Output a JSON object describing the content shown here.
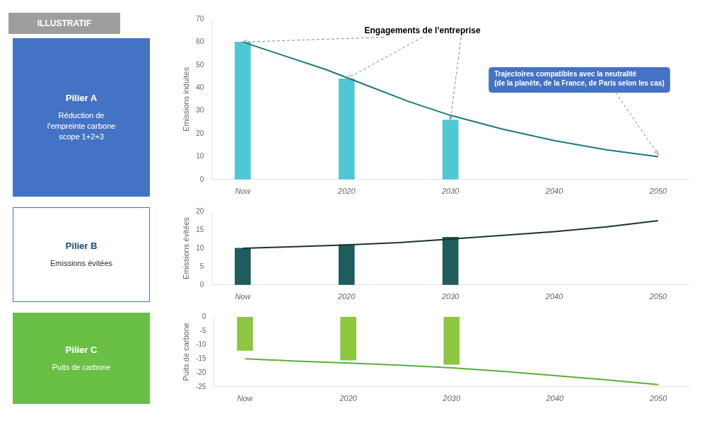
{
  "chart_data": [
    {
      "type": "bar",
      "ylabel": "Emissions induites",
      "xlim": [
        2007,
        2053
      ],
      "xticks": [
        {
          "value": 2010,
          "label": "Now"
        },
        2020,
        2030,
        2040,
        2050
      ],
      "ylim": [
        0,
        70
      ],
      "yticks": [
        0,
        10,
        20,
        30,
        40,
        50,
        60,
        70
      ],
      "grid": false,
      "series": [
        {
          "type": "bar",
          "color": "#4ec9d4",
          "x": [
            2010,
            2020,
            2030
          ],
          "values": [
            60,
            44,
            26
          ]
        },
        {
          "type": "line",
          "color": "#1a7a7a",
          "x": [
            2010,
            2014,
            2018,
            2022,
            2026,
            2030,
            2035,
            2040,
            2045,
            2050
          ],
          "values": [
            60,
            54,
            48,
            41,
            34,
            28,
            22,
            17,
            13,
            10
          ]
        }
      ],
      "annotations": [
        {
          "type": "badge",
          "text": "ILLUSTRATIF",
          "color": "#9e9e9e",
          "text_color": "#ffffff"
        },
        {
          "type": "panel",
          "text": "Pilier A",
          "subtext": "Réduction de\nl'empreinte carbone\nscope 1+2+3",
          "color": "#4472c4",
          "text_color": "#ffffff"
        },
        {
          "type": "callout",
          "text": "Engagements de l’entreprise"
        },
        {
          "type": "box",
          "text": "Trajectoires compatibles avec la neutralité\n(de la planète, de la France, de Paris selon les cas)",
          "color": "#4472c4",
          "text_color": "#ffffff"
        }
      ]
    },
    {
      "type": "bar",
      "ylabel": "Emissions évitées",
      "xlim": [
        2007,
        2053
      ],
      "xticks": [
        {
          "value": 2010,
          "label": "Now"
        },
        2020,
        2030,
        2040,
        2050
      ],
      "ylim": [
        0,
        20
      ],
      "yticks": [
        0,
        5,
        10,
        15,
        20
      ],
      "grid": false,
      "series": [
        {
          "type": "bar",
          "color": "#1f5c5c",
          "x": [
            2010,
            2020,
            2030
          ],
          "values": [
            10,
            11,
            13
          ]
        },
        {
          "type": "line",
          "color": "#1a3333",
          "x": [
            2010,
            2015,
            2020,
            2025,
            2030,
            2035,
            2040,
            2045,
            2050
          ],
          "values": [
            10,
            10.4,
            10.9,
            11.5,
            12.5,
            13.5,
            14.5,
            15.8,
            17.5
          ]
        }
      ],
      "annotations": [
        {
          "type": "panel_outline",
          "text": "Pilier B",
          "subtext": "Emissions évitées",
          "color": "#4472c4",
          "text_color": "#1a5276"
        }
      ]
    },
    {
      "type": "bar",
      "ylabel": "Puits de carbone",
      "xlim": [
        2007,
        2053
      ],
      "xticks": [
        {
          "value": 2010,
          "label": "Now"
        },
        2020,
        2030,
        2040,
        2050
      ],
      "ylim": [
        -25,
        0
      ],
      "yticks": [
        -25,
        -20,
        -15,
        -10,
        -5,
        0
      ],
      "grid": false,
      "series": [
        {
          "type": "bar",
          "color": "#8dc63f",
          "x": [
            2010,
            2020,
            2030
          ],
          "values": [
            -12,
            -15.5,
            -17
          ]
        },
        {
          "type": "line",
          "color": "#5ab033",
          "x": [
            2010,
            2015,
            2020,
            2025,
            2030,
            2035,
            2040,
            2045,
            2050
          ],
          "values": [
            -15,
            -15.8,
            -16.5,
            -17.3,
            -18.2,
            -19.5,
            -21.0,
            -22.5,
            -24.2
          ]
        }
      ],
      "annotations": [
        {
          "type": "panel",
          "text": "Pilier C",
          "subtext": "Puits de carbone",
          "color": "#6abf45",
          "text_color": "#ffffff"
        }
      ]
    }
  ]
}
